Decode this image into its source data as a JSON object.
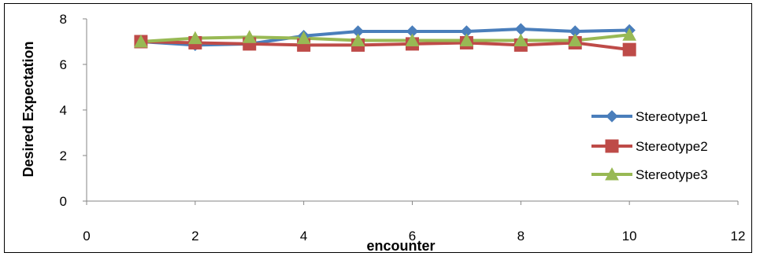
{
  "chart_data": {
    "type": "line",
    "title": "",
    "xlabel": "encounter",
    "ylabel": "Desired Expectation",
    "xlim": [
      0,
      12
    ],
    "ylim": [
      0,
      8
    ],
    "xticks": [
      0,
      2,
      4,
      6,
      8,
      10,
      12
    ],
    "yticks": [
      0,
      2,
      4,
      6,
      8
    ],
    "grid": false,
    "legend_position": "right",
    "x": [
      1,
      2,
      3,
      4,
      5,
      6,
      7,
      8,
      9,
      10
    ],
    "series": [
      {
        "name": "Stereotype1",
        "color": "#4a7ebb",
        "marker": "diamond",
        "values": [
          7.0,
          6.85,
          6.9,
          7.25,
          7.45,
          7.45,
          7.45,
          7.55,
          7.45,
          7.5
        ]
      },
      {
        "name": "Stereotype2",
        "color": "#be4b48",
        "marker": "square",
        "values": [
          7.0,
          6.95,
          6.9,
          6.85,
          6.85,
          6.9,
          6.95,
          6.85,
          6.95,
          6.65
        ]
      },
      {
        "name": "Stereotype3",
        "color": "#98b954",
        "marker": "triangle",
        "values": [
          7.0,
          7.15,
          7.2,
          7.15,
          7.05,
          7.05,
          7.05,
          7.05,
          7.05,
          7.3
        ]
      }
    ]
  }
}
